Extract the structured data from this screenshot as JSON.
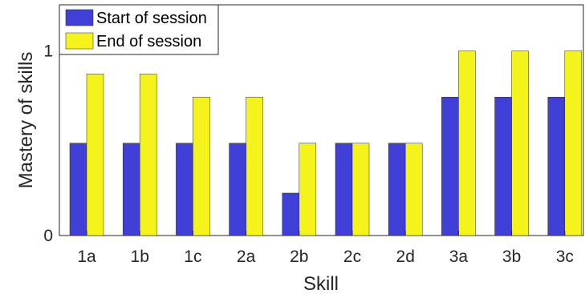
{
  "chart_data": {
    "type": "bar",
    "title": "",
    "xlabel": "Skill",
    "ylabel": "Mastery of skills",
    "categories": [
      "1a",
      "1b",
      "1c",
      "2a",
      "2b",
      "2c",
      "2d",
      "3a",
      "3b",
      "3c"
    ],
    "series": [
      {
        "name": "Start of session",
        "color": "#4040d8",
        "values": [
          0.5,
          0.5,
          0.5,
          0.5,
          0.23,
          0.5,
          0.5,
          0.75,
          0.75,
          0.75
        ]
      },
      {
        "name": "End of session",
        "color": "#f4f41c",
        "values": [
          0.875,
          0.875,
          0.75,
          0.75,
          0.5,
          0.5,
          0.5,
          1.0,
          1.0,
          1.0
        ]
      }
    ],
    "ylim": [
      0,
      1.25
    ],
    "yticks": [
      0,
      1
    ],
    "ytick_labels": [
      "0",
      "1"
    ],
    "grid": false,
    "legend": "top-left"
  }
}
